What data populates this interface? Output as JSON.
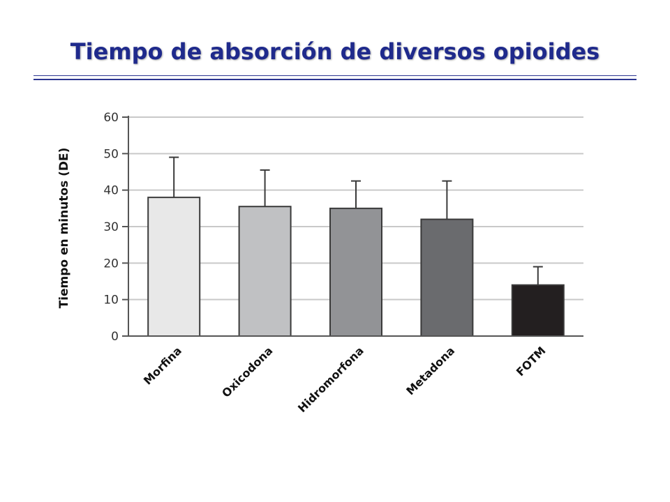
{
  "slide": {
    "title": "Tiempo de absorción de diversos opioides"
  },
  "colors": {
    "title": "#1f2a8c",
    "rule": "#2b3590",
    "grid": "#c9c9c9",
    "axis": "#555555"
  },
  "chart_data": {
    "type": "bar",
    "title": "",
    "xlabel": "",
    "ylabel": "Tiempo en minutos (DE)",
    "categories": [
      "Morfina",
      "Oxicodona",
      "Hidromorfona",
      "Metadona",
      "FOTM"
    ],
    "values": [
      38,
      35.5,
      35,
      32,
      14
    ],
    "error_upper": [
      49,
      45.5,
      42.5,
      42.5,
      19
    ],
    "bar_colors": [
      "#e8e8e8",
      "#c0c1c3",
      "#929396",
      "#6a6b6e",
      "#231f20"
    ],
    "ylim": [
      0,
      60
    ],
    "yticks": [
      0,
      10,
      20,
      30,
      40,
      50,
      60
    ],
    "grid": true,
    "legend": "none"
  }
}
